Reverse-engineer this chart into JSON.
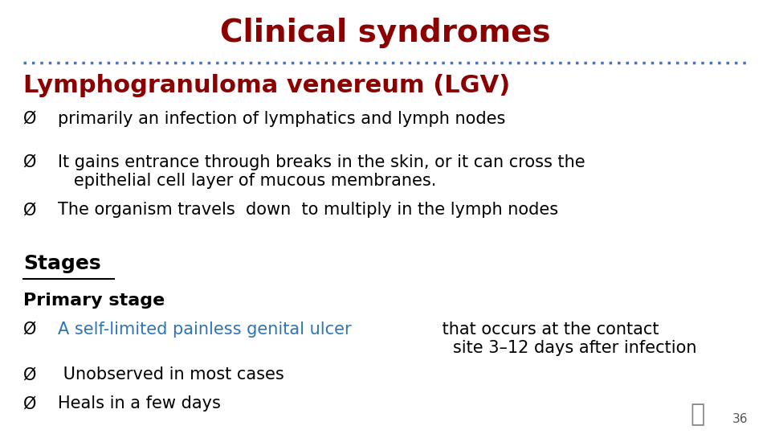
{
  "title": "Clinical syndromes",
  "title_color": "#8B0000",
  "title_fontsize": 28,
  "subtitle": "Lymphogranuloma venereum (LGV)",
  "subtitle_color": "#8B0000",
  "subtitle_fontsize": 22,
  "divider_color": "#4472C4",
  "background_color": "#FFFFFF",
  "bullet_color": "#000000",
  "text_fontsize": 15,
  "text_color": "#000000",
  "bullets": [
    "primarily an infection of lymphatics and lymph nodes",
    "It gains entrance through breaks in the skin, or it can cross the\n   epithelial cell layer of mucous membranes.",
    "The organism travels  down  to multiply in the lymph nodes"
  ],
  "stages_label": "Stages",
  "stages_fontsize": 18,
  "stages_color": "#000000",
  "primary_stage_label": "Primary stage",
  "primary_stage_fontsize": 16,
  "primary_stage_color": "#000000",
  "primary_bullet1_blue": "A self-limited painless genital ulcer",
  "primary_bullet1_black": " that occurs at the contact\n   site 3–12 days after infection",
  "primary_bullet2": " Unobserved in most cases",
  "primary_bullet3": "Heals in a few days",
  "highlight_color": "#2E75B6",
  "page_number": "36"
}
